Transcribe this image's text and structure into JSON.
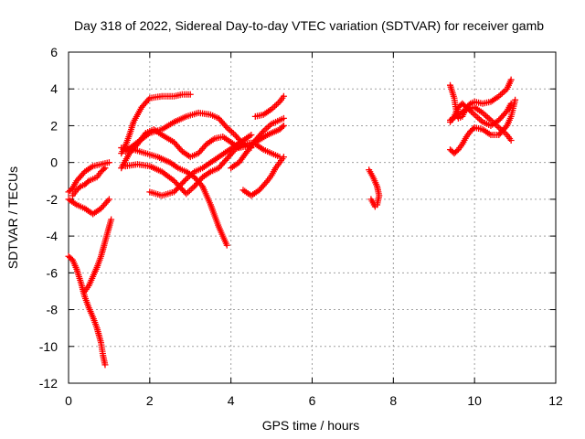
{
  "chart_data": {
    "type": "scatter",
    "title": "Day 318 of 2022, Sidereal Day-to-day VTEC variation (SDTVAR) for receiver gamb",
    "xlabel": "GPS time / hours",
    "ylabel": "SDTVAR / TECUs",
    "xlim": [
      0,
      12
    ],
    "ylim": [
      -12,
      6
    ],
    "x_ticks": [
      "0",
      "2",
      "4",
      "6",
      "8",
      "10",
      "12"
    ],
    "y_ticks": [
      "-12",
      "-10",
      "-8",
      "-6",
      "-4",
      "-2",
      "0",
      "2",
      "4",
      "6"
    ],
    "grid": true,
    "marker": "+",
    "marker_color": "#ff0000",
    "series": [
      {
        "points": [
          [
            0.0,
            -5.1
          ],
          [
            0.1,
            -5.3
          ],
          [
            0.2,
            -5.8
          ],
          [
            0.3,
            -6.5
          ],
          [
            0.4,
            -7.3
          ],
          [
            0.5,
            -7.9
          ],
          [
            0.6,
            -8.4
          ],
          [
            0.7,
            -9.0
          ],
          [
            0.8,
            -9.8
          ],
          [
            0.85,
            -10.5
          ],
          [
            0.9,
            -11.0
          ]
        ]
      },
      {
        "points": [
          [
            0.4,
            -7.0
          ],
          [
            0.5,
            -6.7
          ],
          [
            0.6,
            -6.2
          ],
          [
            0.7,
            -5.7
          ],
          [
            0.8,
            -5.1
          ],
          [
            0.9,
            -4.3
          ],
          [
            1.0,
            -3.5
          ],
          [
            1.05,
            -3.1
          ]
        ]
      },
      {
        "points": [
          [
            0.0,
            -2.0
          ],
          [
            0.2,
            -2.3
          ],
          [
            0.4,
            -2.5
          ],
          [
            0.6,
            -2.8
          ],
          [
            0.8,
            -2.5
          ],
          [
            1.0,
            -2.0
          ]
        ]
      },
      {
        "points": [
          [
            0.0,
            -1.6
          ],
          [
            0.1,
            -1.4
          ],
          [
            0.2,
            -1.0
          ],
          [
            0.4,
            -0.5
          ],
          [
            0.6,
            -0.2
          ],
          [
            0.8,
            -0.1
          ],
          [
            1.0,
            0.0
          ]
        ]
      },
      {
        "points": [
          [
            0.1,
            -1.8
          ],
          [
            0.2,
            -1.5
          ],
          [
            0.3,
            -1.3
          ],
          [
            0.4,
            -1.2
          ],
          [
            0.5,
            -1.0
          ],
          [
            0.6,
            -0.9
          ],
          [
            0.7,
            -0.8
          ],
          [
            0.8,
            -0.5
          ],
          [
            0.9,
            -0.3
          ]
        ]
      },
      {
        "points": [
          [
            1.3,
            0.5
          ],
          [
            1.4,
            0.9
          ],
          [
            1.5,
            1.5
          ],
          [
            1.6,
            2.2
          ],
          [
            1.8,
            3.0
          ],
          [
            2.0,
            3.5
          ],
          [
            2.3,
            3.6
          ],
          [
            2.6,
            3.6
          ],
          [
            2.8,
            3.7
          ],
          [
            3.0,
            3.7
          ]
        ]
      },
      {
        "points": [
          [
            1.3,
            -0.3
          ],
          [
            1.5,
            0.5
          ],
          [
            1.7,
            1.0
          ],
          [
            1.9,
            1.6
          ],
          [
            2.1,
            1.8
          ],
          [
            2.3,
            1.5
          ],
          [
            2.6,
            1.1
          ],
          [
            2.8,
            0.6
          ],
          [
            3.0,
            0.3
          ],
          [
            3.2,
            0.5
          ],
          [
            3.4,
            1.0
          ],
          [
            3.6,
            1.3
          ],
          [
            3.8,
            1.4
          ],
          [
            4.0,
            1.1
          ],
          [
            4.2,
            0.8
          ],
          [
            4.4,
            0.9
          ],
          [
            4.6,
            1.0
          ],
          [
            4.8,
            0.7
          ],
          [
            5.0,
            0.5
          ],
          [
            5.2,
            0.3
          ]
        ]
      },
      {
        "points": [
          [
            1.4,
            0.6
          ],
          [
            1.7,
            1.1
          ],
          [
            2.0,
            1.6
          ],
          [
            2.3,
            1.8
          ],
          [
            2.6,
            2.2
          ],
          [
            2.9,
            2.5
          ],
          [
            3.2,
            2.7
          ],
          [
            3.5,
            2.6
          ],
          [
            3.7,
            2.4
          ],
          [
            3.9,
            1.9
          ],
          [
            4.1,
            1.5
          ],
          [
            4.3,
            1.0
          ],
          [
            4.5,
            0.8
          ]
        ]
      },
      {
        "points": [
          [
            1.3,
            0.8
          ],
          [
            1.6,
            0.7
          ],
          [
            1.9,
            0.5
          ],
          [
            2.2,
            0.3
          ],
          [
            2.5,
            0.0
          ],
          [
            2.7,
            -0.3
          ],
          [
            2.9,
            -0.5
          ],
          [
            3.1,
            -0.8
          ],
          [
            3.3,
            -1.3
          ],
          [
            3.5,
            -2.3
          ],
          [
            3.7,
            -3.5
          ],
          [
            3.9,
            -4.5
          ]
        ]
      },
      {
        "points": [
          [
            1.4,
            -0.2
          ],
          [
            1.7,
            -0.1
          ],
          [
            2.0,
            -0.2
          ],
          [
            2.3,
            -0.5
          ],
          [
            2.6,
            -1.0
          ],
          [
            2.9,
            -1.7
          ],
          [
            3.1,
            -1.3
          ],
          [
            3.3,
            -0.8
          ],
          [
            3.5,
            -0.5
          ],
          [
            3.7,
            -0.3
          ],
          [
            3.9,
            0.2
          ],
          [
            4.1,
            0.7
          ],
          [
            4.3,
            1.0
          ],
          [
            4.6,
            1.1
          ],
          [
            4.9,
            1.5
          ],
          [
            5.2,
            1.8
          ],
          [
            5.3,
            2.0
          ]
        ]
      },
      {
        "points": [
          [
            2.0,
            -1.6
          ],
          [
            2.3,
            -1.8
          ],
          [
            2.6,
            -1.6
          ],
          [
            2.9,
            -0.9
          ],
          [
            3.1,
            -0.5
          ],
          [
            3.3,
            -0.3
          ],
          [
            3.5,
            0.0
          ],
          [
            3.7,
            0.3
          ],
          [
            3.9,
            0.6
          ],
          [
            4.1,
            0.9
          ],
          [
            4.3,
            1.2
          ],
          [
            4.5,
            1.5
          ]
        ]
      },
      {
        "points": [
          [
            4.3,
            -1.5
          ],
          [
            4.5,
            -1.8
          ],
          [
            4.7,
            -1.5
          ],
          [
            4.9,
            -1.0
          ],
          [
            5.0,
            -0.7
          ],
          [
            5.1,
            -0.3
          ],
          [
            5.2,
            0.0
          ],
          [
            5.3,
            0.3
          ]
        ]
      },
      {
        "points": [
          [
            4.0,
            -0.3
          ],
          [
            4.2,
            0.0
          ],
          [
            4.4,
            0.6
          ],
          [
            4.6,
            1.2
          ],
          [
            4.8,
            1.7
          ],
          [
            5.0,
            2.1
          ],
          [
            5.2,
            2.3
          ],
          [
            5.3,
            2.4
          ]
        ]
      },
      {
        "points": [
          [
            4.6,
            2.5
          ],
          [
            4.8,
            2.6
          ],
          [
            5.0,
            2.9
          ],
          [
            5.2,
            3.3
          ],
          [
            5.3,
            3.6
          ]
        ]
      },
      {
        "points": [
          [
            7.4,
            -0.4
          ],
          [
            7.5,
            -0.8
          ],
          [
            7.6,
            -1.3
          ],
          [
            7.65,
            -1.8
          ],
          [
            7.6,
            -2.3
          ]
        ]
      },
      {
        "points": [
          [
            7.45,
            -2.0
          ],
          [
            7.5,
            -2.2
          ],
          [
            7.55,
            -2.4
          ]
        ]
      },
      {
        "points": [
          [
            9.4,
            4.2
          ],
          [
            9.5,
            3.5
          ],
          [
            9.55,
            2.8
          ],
          [
            9.6,
            2.4
          ],
          [
            9.7,
            2.5
          ],
          [
            9.8,
            3.0
          ],
          [
            9.9,
            3.2
          ],
          [
            10.0,
            3.3
          ],
          [
            10.2,
            3.2
          ],
          [
            10.4,
            3.3
          ],
          [
            10.6,
            3.6
          ],
          [
            10.8,
            4.0
          ],
          [
            10.9,
            4.5
          ]
        ]
      },
      {
        "points": [
          [
            9.4,
            2.2
          ],
          [
            9.5,
            2.5
          ],
          [
            9.6,
            3.0
          ],
          [
            9.7,
            3.2
          ],
          [
            9.8,
            3.0
          ],
          [
            10.0,
            2.6
          ],
          [
            10.2,
            2.2
          ],
          [
            10.4,
            2.0
          ],
          [
            10.6,
            2.3
          ],
          [
            10.8,
            2.8
          ],
          [
            10.9,
            3.2
          ]
        ]
      },
      {
        "points": [
          [
            9.4,
            2.3
          ],
          [
            9.6,
            2.6
          ],
          [
            9.8,
            2.9
          ],
          [
            10.0,
            3.0
          ],
          [
            10.2,
            2.7
          ],
          [
            10.4,
            2.3
          ],
          [
            10.6,
            1.9
          ],
          [
            10.8,
            1.5
          ],
          [
            10.9,
            1.2
          ]
        ]
      },
      {
        "points": [
          [
            9.4,
            0.7
          ],
          [
            9.5,
            0.5
          ],
          [
            9.6,
            0.7
          ],
          [
            9.7,
            1.0
          ],
          [
            9.8,
            1.4
          ],
          [
            9.9,
            1.7
          ],
          [
            10.0,
            1.9
          ],
          [
            10.2,
            1.8
          ],
          [
            10.4,
            1.5
          ],
          [
            10.6,
            1.5
          ],
          [
            10.8,
            2.0
          ],
          [
            10.9,
            2.5
          ],
          [
            11.0,
            3.4
          ]
        ]
      }
    ]
  }
}
